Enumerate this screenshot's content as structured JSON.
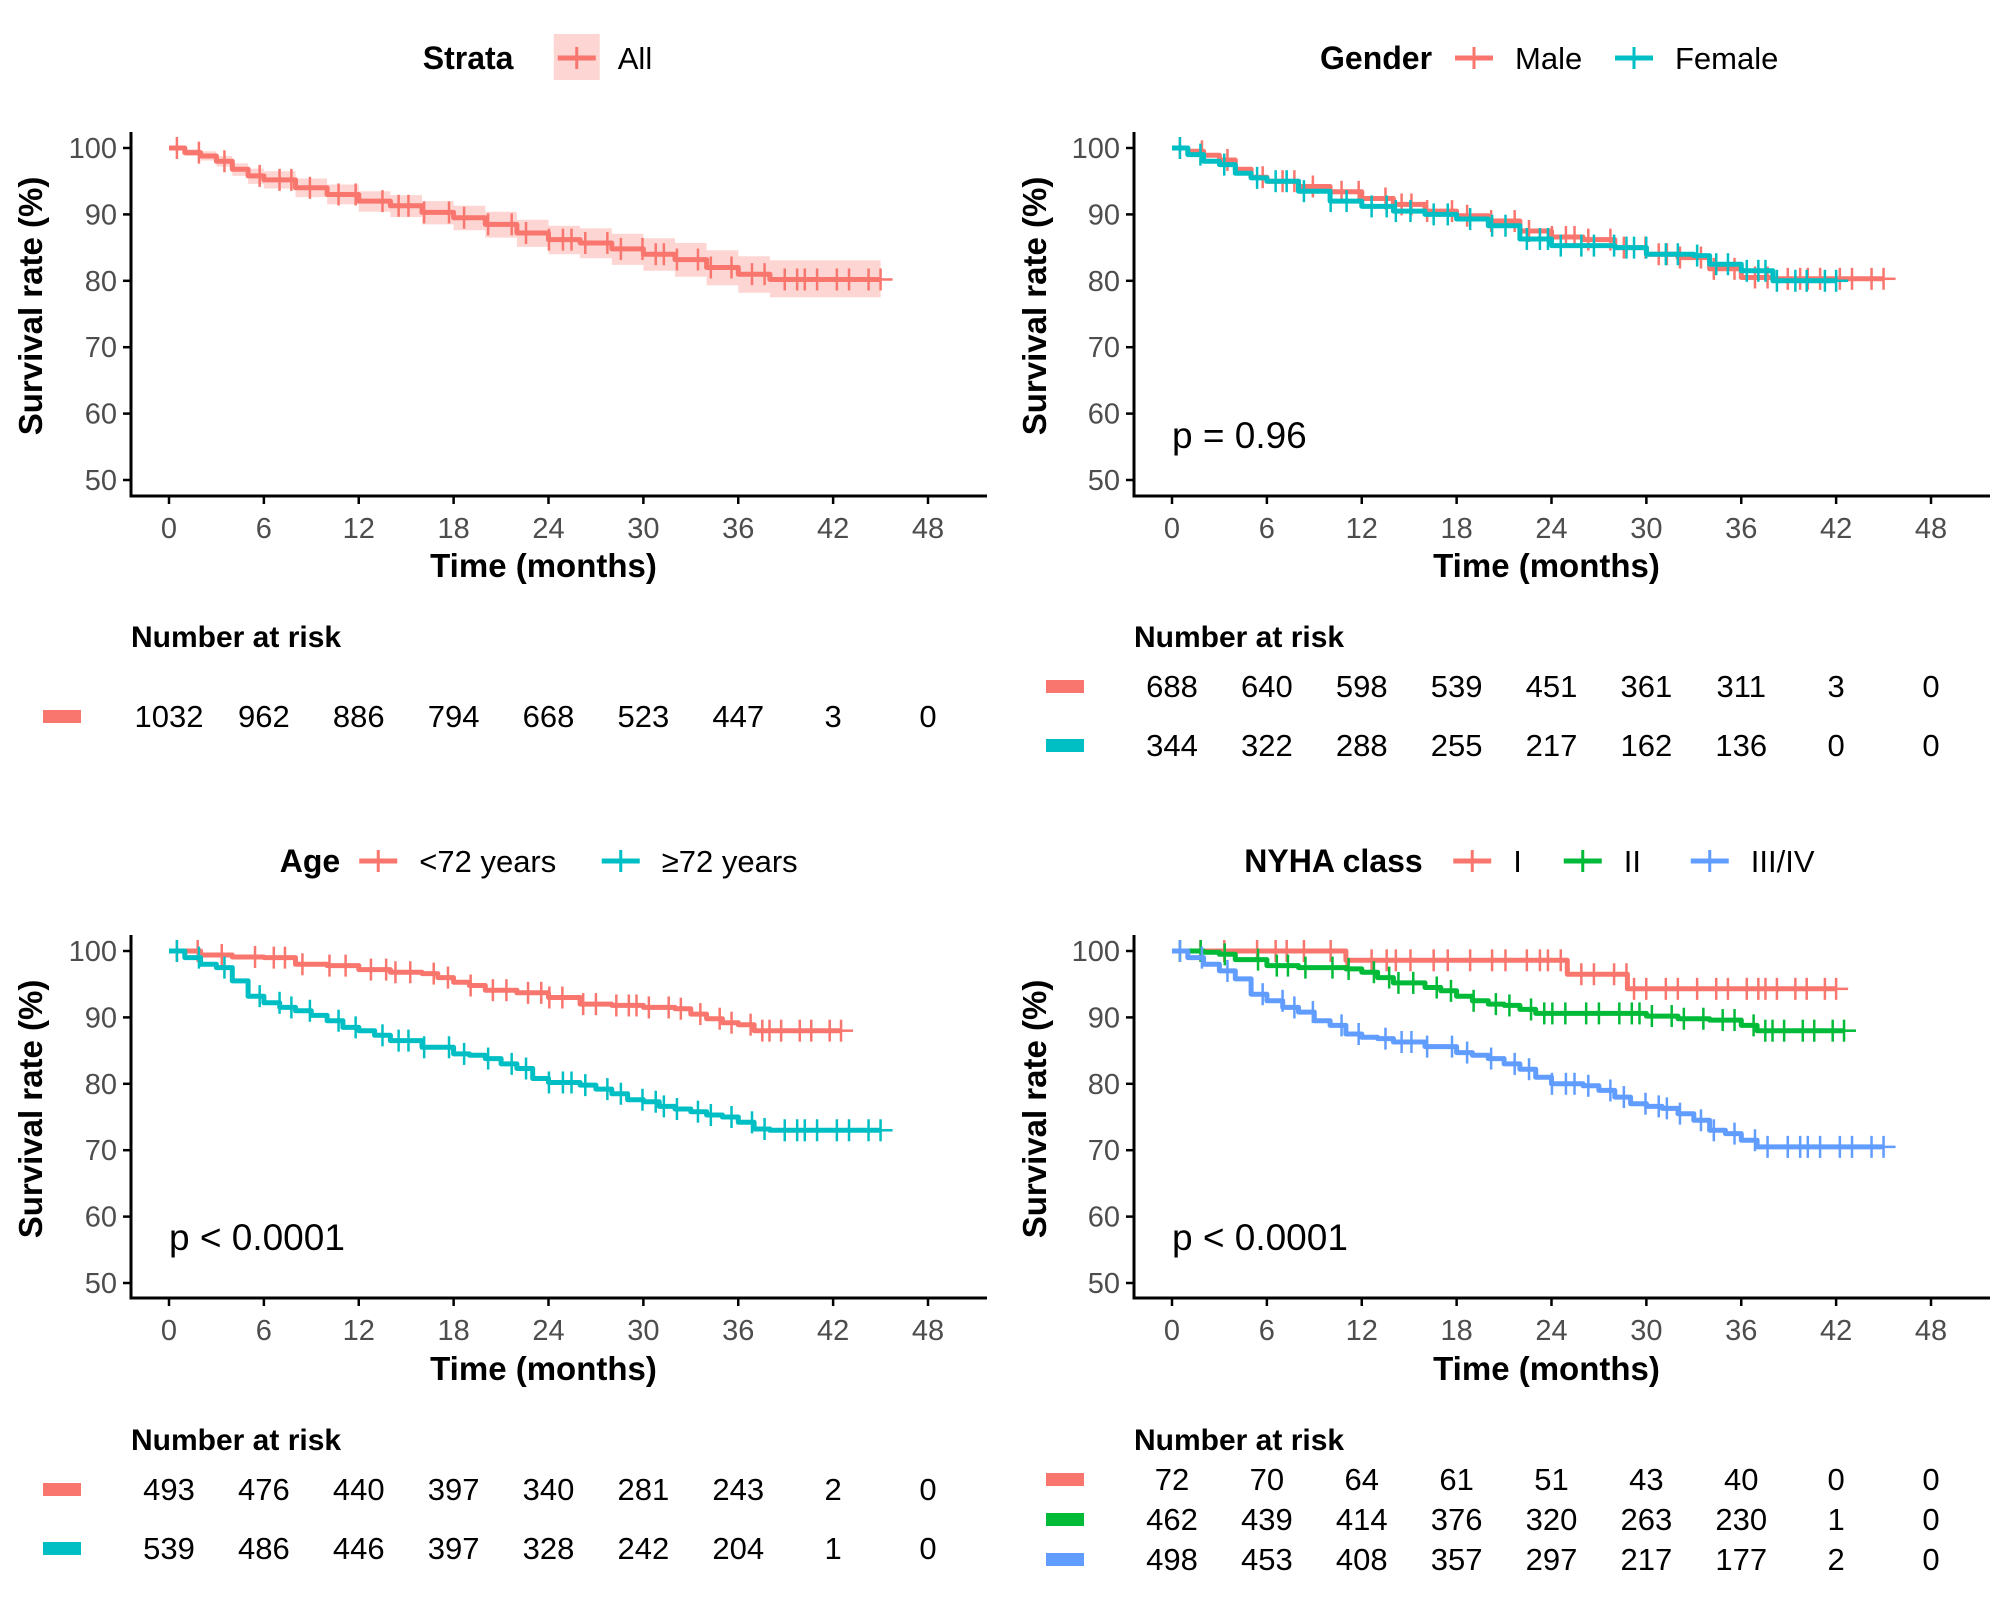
{
  "chart_data": [
    {
      "type": "line",
      "subtype": "kaplan-meier",
      "legend_title": "Strata",
      "legend_placement": "top",
      "xlabel": "Time (months)",
      "ylabel": "Survival rate (%)",
      "xlim": [
        0,
        48
      ],
      "ylim": [
        50,
        100
      ],
      "x_ticks": [
        "0",
        "6",
        "12",
        "18",
        "24",
        "30",
        "36",
        "42",
        "48"
      ],
      "y_ticks": [
        "100",
        "90",
        "80",
        "70",
        "60",
        "50"
      ],
      "pvalue": null,
      "confidence_band": true,
      "series": [
        {
          "name": "All",
          "color": "#F8766D",
          "x": [
            0,
            1,
            2,
            3,
            4,
            5,
            6,
            8,
            10,
            12,
            14,
            16,
            18,
            20,
            22,
            24,
            26,
            28,
            30,
            32,
            34,
            36,
            38,
            45
          ],
          "y": [
            100,
            99.3,
            98.8,
            98,
            96.8,
            95.8,
            95.2,
            94,
            93,
            92,
            91.3,
            90.3,
            89.5,
            88.5,
            87.2,
            86.2,
            85.7,
            84.8,
            84,
            83.2,
            82,
            81,
            80.2,
            80.2
          ],
          "ci_lower": [
            100,
            98.8,
            98.1,
            97.2,
            95.8,
            94.6,
            93.9,
            92.6,
            91.5,
            90.4,
            89.6,
            88.5,
            87.6,
            86.5,
            85.1,
            84,
            83.4,
            82.4,
            81.5,
            80.6,
            79.3,
            78.2,
            77.5,
            77.5
          ],
          "ci_upper": [
            100,
            99.8,
            99.5,
            98.8,
            97.7,
            96.9,
            96.5,
            95.4,
            94.5,
            93.5,
            92.9,
            92,
            91.3,
            90.4,
            89.2,
            88.3,
            87.9,
            87.1,
            86.4,
            85.7,
            84.6,
            83.7,
            83.1,
            83.1
          ]
        }
      ],
      "risk_table": {
        "title": "Number at risk",
        "times": [
          0,
          6,
          12,
          18,
          24,
          30,
          36,
          42,
          48
        ],
        "rows": [
          {
            "color": "#F8766D",
            "values": [
              "1032",
              "962",
              "886",
              "794",
              "668",
              "523",
              "447",
              "3",
              "0"
            ]
          }
        ]
      }
    },
    {
      "type": "line",
      "subtype": "kaplan-meier",
      "legend_title": "Gender",
      "legend_placement": "top",
      "xlabel": "Time (months)",
      "ylabel": "Survival rate (%)",
      "xlim": [
        0,
        48
      ],
      "ylim": [
        50,
        100
      ],
      "x_ticks": [
        "0",
        "6",
        "12",
        "18",
        "24",
        "30",
        "36",
        "42",
        "48"
      ],
      "y_ticks": [
        "100",
        "90",
        "80",
        "70",
        "60",
        "50"
      ],
      "pvalue": "p = 0.96",
      "confidence_band": false,
      "series": [
        {
          "name": "Male",
          "color": "#F8766D",
          "x": [
            0,
            1,
            2,
            3,
            4,
            5,
            6,
            8,
            10,
            12,
            14,
            16,
            18,
            20,
            22,
            24,
            26,
            28,
            30,
            32,
            34,
            36,
            38,
            45
          ],
          "y": [
            100,
            99.5,
            98.9,
            98.2,
            96.8,
            95.6,
            95,
            94.2,
            93.4,
            92.4,
            91.5,
            90.5,
            89.8,
            89,
            87.5,
            86.6,
            86.2,
            85,
            84,
            83.5,
            81.8,
            80.5,
            80.3,
            80.3
          ]
        },
        {
          "name": "Female",
          "color": "#00BFC4",
          "x": [
            0,
            1,
            2,
            3,
            4,
            5,
            6,
            8,
            10,
            12,
            14,
            16,
            18,
            20,
            22,
            24,
            26,
            28,
            30,
            32,
            33,
            34,
            36,
            38,
            42
          ],
          "y": [
            100,
            99,
            98,
            97.5,
            96.2,
            95.5,
            95,
            93.5,
            92,
            91.2,
            90.5,
            90,
            89.3,
            88.3,
            86.3,
            85.3,
            85.3,
            85,
            84,
            84,
            83.8,
            82.5,
            81.5,
            80,
            80
          ]
        }
      ],
      "risk_table": {
        "title": "Number at risk",
        "times": [
          0,
          6,
          12,
          18,
          24,
          30,
          36,
          42,
          48
        ],
        "rows": [
          {
            "color": "#F8766D",
            "values": [
              "688",
              "640",
              "598",
              "539",
              "451",
              "361",
              "311",
              "3",
              "0"
            ]
          },
          {
            "color": "#00BFC4",
            "values": [
              "344",
              "322",
              "288",
              "255",
              "217",
              "162",
              "136",
              "0",
              "0"
            ]
          }
        ]
      }
    },
    {
      "type": "line",
      "subtype": "kaplan-meier",
      "legend_title": "Age",
      "legend_placement": "top",
      "xlabel": "Time (months)",
      "ylabel": "Survival rate (%)",
      "xlim": [
        0,
        48
      ],
      "ylim": [
        50,
        100
      ],
      "x_ticks": [
        "0",
        "6",
        "12",
        "18",
        "24",
        "30",
        "36",
        "42",
        "48"
      ],
      "y_ticks": [
        "100",
        "90",
        "80",
        "70",
        "60",
        "50"
      ],
      "pvalue": "p < 0.0001",
      "confidence_band": false,
      "series": [
        {
          "name": "<72 years",
          "color": "#F8766D",
          "x": [
            0,
            2,
            4,
            6,
            8,
            10,
            12,
            14,
            16,
            17,
            18,
            19,
            20,
            22,
            24,
            26,
            28,
            30,
            32,
            33,
            34,
            35,
            36,
            37,
            42.5
          ],
          "y": [
            100,
            99.4,
            99.1,
            99,
            98,
            97.8,
            97.2,
            96.8,
            96.6,
            96,
            95.3,
            94.8,
            94.1,
            93.7,
            93,
            92,
            91.8,
            91.5,
            91.3,
            90.5,
            89.8,
            89.2,
            88.9,
            88,
            88
          ]
        },
        {
          "name": "≥72 years",
          "color": "#00BFC4",
          "x": [
            0,
            1,
            2,
            3,
            4,
            5,
            6,
            7,
            8,
            9,
            10,
            11,
            12,
            13,
            14,
            16,
            18,
            19,
            20,
            21,
            22,
            23,
            24,
            26,
            27,
            28,
            29,
            30,
            31,
            32,
            33,
            34,
            35,
            36,
            37,
            38,
            45
          ],
          "y": [
            100,
            99,
            98,
            97.5,
            95.5,
            93.2,
            92.2,
            91.5,
            91,
            90.3,
            89.5,
            88.5,
            88,
            87.3,
            86.5,
            85.5,
            84.5,
            84.3,
            83.8,
            83,
            82.3,
            80.8,
            80.2,
            79.8,
            79.2,
            78.5,
            77.6,
            77.3,
            76.6,
            76.2,
            75.8,
            75.3,
            75,
            74.2,
            73.2,
            73,
            73
          ]
        }
      ],
      "risk_table": {
        "title": "Number at risk",
        "times": [
          0,
          6,
          12,
          18,
          24,
          30,
          36,
          42,
          48
        ],
        "rows": [
          {
            "color": "#F8766D",
            "values": [
              "493",
              "476",
              "440",
              "397",
              "340",
              "281",
              "243",
              "2",
              "0"
            ]
          },
          {
            "color": "#00BFC4",
            "values": [
              "539",
              "486",
              "446",
              "397",
              "328",
              "242",
              "204",
              "1",
              "0"
            ]
          }
        ]
      }
    },
    {
      "type": "line",
      "subtype": "kaplan-meier",
      "legend_title": "NYHA class",
      "legend_placement": "top",
      "xlabel": "Time (months)",
      "ylabel": "Survival rate (%)",
      "xlim": [
        0,
        48
      ],
      "ylim": [
        50,
        100
      ],
      "x_ticks": [
        "0",
        "6",
        "12",
        "18",
        "24",
        "30",
        "36",
        "42",
        "48"
      ],
      "y_ticks": [
        "100",
        "90",
        "80",
        "70",
        "60",
        "50"
      ],
      "pvalue": "p < 0.0001",
      "confidence_band": false,
      "series": [
        {
          "name": "I",
          "color": "#F8766D",
          "x": [
            0,
            11,
            25,
            28.8,
            42
          ],
          "y": [
            100,
            98.6,
            96.5,
            94.3,
            94.3
          ]
        },
        {
          "name": "II",
          "color": "#00BA38",
          "x": [
            0,
            2,
            3,
            4,
            6,
            8,
            11,
            12,
            13,
            14,
            16,
            17,
            18,
            19,
            20,
            21,
            22,
            23,
            29,
            30,
            32,
            34,
            36,
            37,
            42.5
          ],
          "y": [
            100,
            99.8,
            99.5,
            98.7,
            97.8,
            97.5,
            97.3,
            96.8,
            96,
            95.2,
            94.5,
            94,
            93.2,
            92.5,
            92,
            91.8,
            91.2,
            90.6,
            90.6,
            90.2,
            89.8,
            89.6,
            88.8,
            88,
            88
          ]
        },
        {
          "name": "III/IV",
          "color": "#619CFF",
          "x": [
            0,
            1,
            2,
            3,
            4,
            5,
            6,
            7,
            8,
            9,
            10,
            11,
            12,
            13,
            14,
            16,
            18,
            19,
            20,
            21,
            22,
            23,
            24,
            26,
            27,
            28,
            29,
            30,
            31,
            32,
            33,
            34,
            35,
            36,
            37,
            45
          ],
          "y": [
            100,
            99,
            98,
            97,
            95.8,
            93.5,
            92.5,
            91.5,
            90.8,
            89.5,
            88.8,
            87.5,
            87,
            86.8,
            86.3,
            85.6,
            84.7,
            84.3,
            83.8,
            83,
            82.2,
            81,
            80,
            79.7,
            79,
            78,
            77,
            76.6,
            76.3,
            75.5,
            74.5,
            73,
            72.5,
            71.5,
            70.5,
            70.5
          ]
        }
      ],
      "risk_table": {
        "title": "Number at risk",
        "times": [
          0,
          6,
          12,
          18,
          24,
          30,
          36,
          42,
          48
        ],
        "rows": [
          {
            "color": "#F8766D",
            "values": [
              "72",
              "70",
              "64",
              "61",
              "51",
              "43",
              "40",
              "0",
              "0"
            ]
          },
          {
            "color": "#00BA38",
            "values": [
              "462",
              "439",
              "414",
              "376",
              "320",
              "263",
              "230",
              "1",
              "0"
            ]
          },
          {
            "color": "#619CFF",
            "values": [
              "498",
              "453",
              "408",
              "357",
              "297",
              "217",
              "177",
              "2",
              "0"
            ]
          }
        ]
      }
    }
  ]
}
